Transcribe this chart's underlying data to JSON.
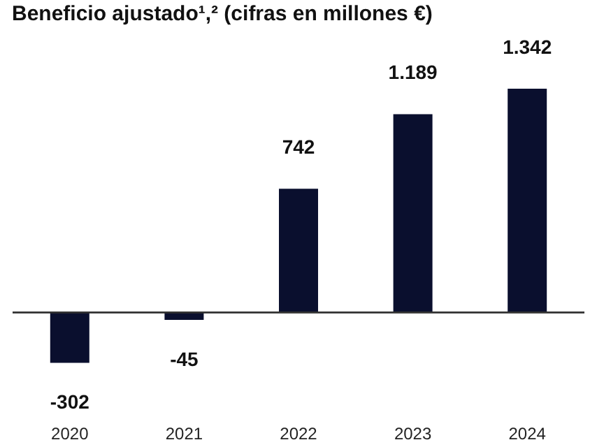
{
  "chart_data": {
    "type": "bar",
    "title": "Beneficio ajustado¹,² (cifras en millones €)",
    "categories": [
      "2020",
      "2021",
      "2022",
      "2023",
      "2024"
    ],
    "values": [
      -302,
      -45,
      742,
      1189,
      1342
    ],
    "value_labels": [
      "-302",
      "-45",
      "742",
      "1.189",
      "1.342"
    ],
    "color": "#0a0f2e"
  }
}
